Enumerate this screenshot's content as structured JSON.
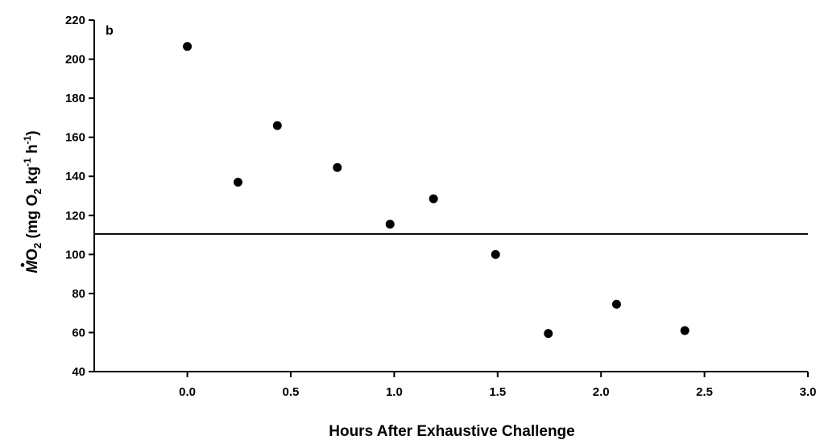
{
  "chart_data": {
    "type": "scatter",
    "panel_label": "b",
    "xlabel": "Hours After Exhaustive Challenge",
    "ylabel": {
      "symbol": "M",
      "subscript_o": "O",
      "sub2": "2",
      "unit_open": " (mg O",
      "unit_sub": "2",
      "unit_kg": " kg",
      "sup_kg": "-1",
      "unit_h": " h",
      "sup_h": "-1",
      "unit_close": ")"
    },
    "xlim": [
      -0.45,
      3.0
    ],
    "ylim": [
      40,
      220
    ],
    "x_ticks": [
      0.0,
      0.5,
      1.0,
      1.5,
      2.0,
      2.5,
      3.0
    ],
    "x_tick_labels": [
      "0.0",
      "0.5",
      "1.0",
      "1.5",
      "2.0",
      "2.5",
      "3.0"
    ],
    "y_ticks": [
      40,
      60,
      80,
      100,
      120,
      140,
      160,
      180,
      200,
      220
    ],
    "y_tick_labels": [
      "40",
      "60",
      "80",
      "100",
      "120",
      "140",
      "160",
      "180",
      "200",
      "220"
    ],
    "points": [
      {
        "x": 0.0,
        "y": 206.5
      },
      {
        "x": 0.245,
        "y": 137
      },
      {
        "x": 0.435,
        "y": 166
      },
      {
        "x": 0.725,
        "y": 144.5
      },
      {
        "x": 0.98,
        "y": 115.5
      },
      {
        "x": 1.19,
        "y": 128.5
      },
      {
        "x": 1.49,
        "y": 100
      },
      {
        "x": 1.745,
        "y": 59.5
      },
      {
        "x": 2.075,
        "y": 74.5
      },
      {
        "x": 2.405,
        "y": 61
      }
    ],
    "reference_line_y": 110.5,
    "grid": false,
    "marker_color": "#000000"
  }
}
